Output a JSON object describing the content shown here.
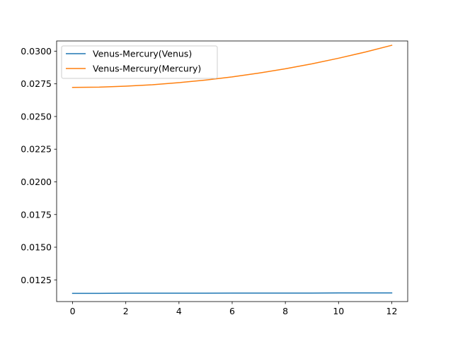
{
  "chart_data": {
    "type": "line",
    "title": "",
    "xlabel": "",
    "ylabel": "",
    "xlim": [
      -0.6,
      12.6
    ],
    "ylim": [
      0.01084,
      0.03078
    ],
    "xticks": [
      0,
      2,
      4,
      6,
      8,
      10,
      12
    ],
    "xtick_labels": [
      "0",
      "2",
      "4",
      "6",
      "8",
      "10",
      "12"
    ],
    "yticks": [
      0.0125,
      0.015,
      0.0175,
      0.02,
      0.0225,
      0.025,
      0.0275,
      0.03
    ],
    "ytick_labels": [
      "0.0125",
      "0.0150",
      "0.0175",
      "0.0200",
      "0.0225",
      "0.0250",
      "0.0275",
      "0.0300"
    ],
    "grid": false,
    "legend_position": "upper-left",
    "x": [
      0,
      1,
      2,
      3,
      4,
      5,
      6,
      7,
      8,
      9,
      10,
      11,
      12
    ],
    "series": [
      {
        "name": "Venus-Mercury(Venus)",
        "color": "#1f77b4",
        "values": [
          0.01147,
          0.01147,
          0.01148,
          0.01148,
          0.01148,
          0.01148,
          0.01149,
          0.01149,
          0.01149,
          0.01149,
          0.0115,
          0.0115,
          0.0115
        ]
      },
      {
        "name": "Venus-Mercury(Mercury)",
        "color": "#ff7f0e",
        "values": [
          0.02723,
          0.02725,
          0.02732,
          0.02743,
          0.02759,
          0.02779,
          0.02803,
          0.02832,
          0.02865,
          0.02903,
          0.02946,
          0.02993,
          0.03045
        ]
      }
    ]
  }
}
